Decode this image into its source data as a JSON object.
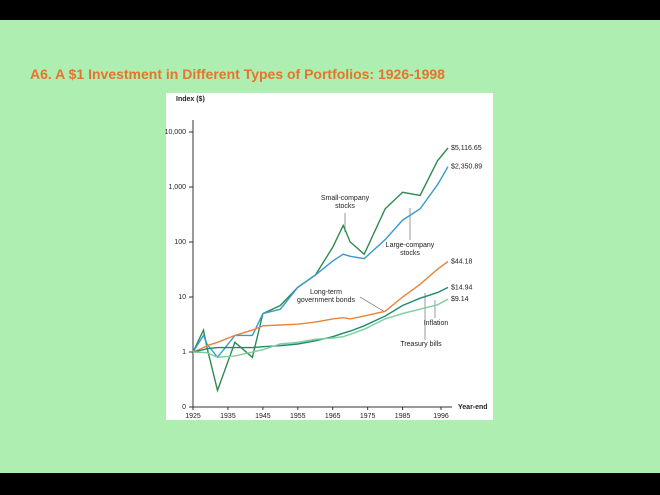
{
  "chart_data": {
    "type": "line",
    "title": "A6. A $1 Investment in Different Types of Portfolios: 1926-1998",
    "y_axis_label": "Index ($)",
    "x_axis_label": "Year-end",
    "log_scale": true,
    "xlim": [
      1925,
      1998
    ],
    "xticks": [
      1925,
      1935,
      1945,
      1955,
      1965,
      1975,
      1985,
      1996
    ],
    "ylim": [
      0.1,
      10000
    ],
    "yticks": [
      {
        "value": 0.1,
        "label": "0"
      },
      1,
      10,
      100,
      {
        "value": 1000,
        "label": "1,000"
      },
      {
        "value": 10000,
        "label": "10,000"
      }
    ],
    "x": [
      1925,
      1928,
      1929,
      1932,
      1937,
      1942,
      1945,
      1950,
      1955,
      1960,
      1965,
      1968,
      1970,
      1974,
      1980,
      1985,
      1990,
      1995,
      1998
    ],
    "series": [
      {
        "name": "Small-company stocks",
        "color": "#2e8b4f",
        "values": [
          1,
          2.5,
          1.2,
          0.2,
          1.5,
          0.8,
          5,
          7,
          15,
          25,
          80,
          200,
          100,
          60,
          400,
          800,
          700,
          3000,
          5116.65
        ],
        "value_labels": [
          null,
          null,
          null,
          null,
          null,
          null,
          null,
          null,
          null,
          null,
          null,
          null,
          null,
          null,
          null,
          null,
          null,
          null,
          "$5,116.65"
        ]
      },
      {
        "name": "Large-company stocks",
        "color": "#3a9ad0",
        "values": [
          1,
          2,
          1.4,
          0.8,
          2,
          2,
          5,
          6,
          15,
          25,
          45,
          60,
          55,
          50,
          110,
          250,
          400,
          1100,
          2350.89
        ],
        "value_labels": [
          null,
          null,
          null,
          null,
          null,
          null,
          null,
          null,
          null,
          null,
          null,
          null,
          null,
          null,
          null,
          null,
          null,
          null,
          "$2,350.89"
        ]
      },
      {
        "name": "Long-term government bonds",
        "color": "#e8843a",
        "values": [
          1,
          1.2,
          1.3,
          1.5,
          2,
          2.5,
          3,
          3.1,
          3.2,
          3.5,
          4,
          4.2,
          4,
          4.5,
          5.5,
          10,
          17,
          32,
          44.18
        ],
        "value_labels": [
          null,
          null,
          null,
          null,
          null,
          null,
          null,
          null,
          null,
          null,
          null,
          null,
          null,
          null,
          null,
          null,
          null,
          null,
          "$44.18"
        ]
      },
      {
        "name": "Treasury bills",
        "color": "#1e8a6e",
        "values": [
          1,
          1.1,
          1.15,
          1.2,
          1.2,
          1.2,
          1.25,
          1.3,
          1.4,
          1.6,
          1.9,
          2.2,
          2.4,
          3,
          4.5,
          7,
          9.5,
          12,
          14.94
        ],
        "value_labels": [
          null,
          null,
          null,
          null,
          null,
          null,
          null,
          null,
          null,
          null,
          null,
          null,
          null,
          null,
          null,
          null,
          null,
          null,
          "$14.94"
        ]
      },
      {
        "name": "Inflation",
        "color": "#7ccf9a",
        "values": [
          1,
          0.98,
          0.97,
          0.8,
          0.85,
          1,
          1.1,
          1.4,
          1.5,
          1.7,
          1.8,
          1.9,
          2.1,
          2.6,
          4,
          5,
          6,
          7.2,
          9.14
        ],
        "value_labels": [
          null,
          null,
          null,
          null,
          null,
          null,
          null,
          null,
          null,
          null,
          null,
          null,
          null,
          null,
          null,
          null,
          null,
          null,
          "$9.14"
        ]
      }
    ]
  }
}
